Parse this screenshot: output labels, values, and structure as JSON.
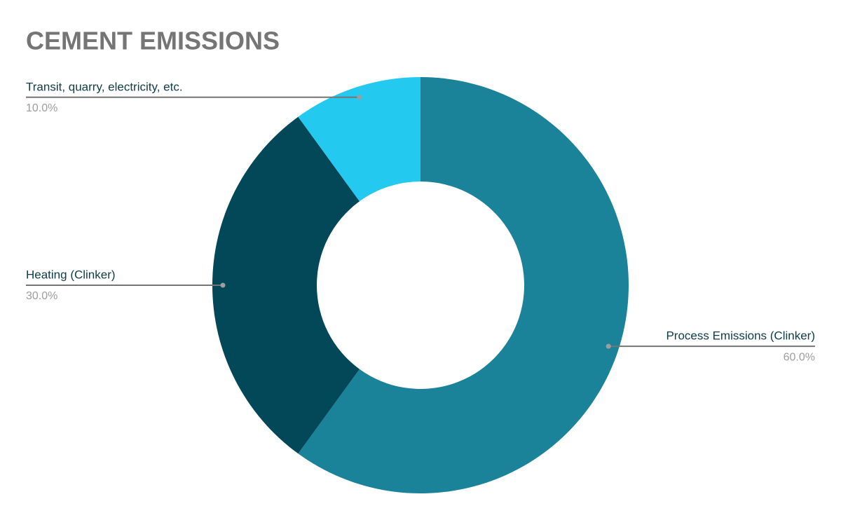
{
  "chart_data": {
    "type": "pie",
    "title": "CEMENT EMISSIONS",
    "categories": [
      "Process Emissions (Clinker)",
      "Heating (Clinker)",
      "Transit, quarry, electricity, etc."
    ],
    "values": [
      60,
      30,
      10
    ],
    "value_labels": [
      "60.0%",
      "30.0%",
      "10.0%"
    ],
    "colors": [
      "#1a8399",
      "#024859",
      "#24c9ef"
    ]
  }
}
